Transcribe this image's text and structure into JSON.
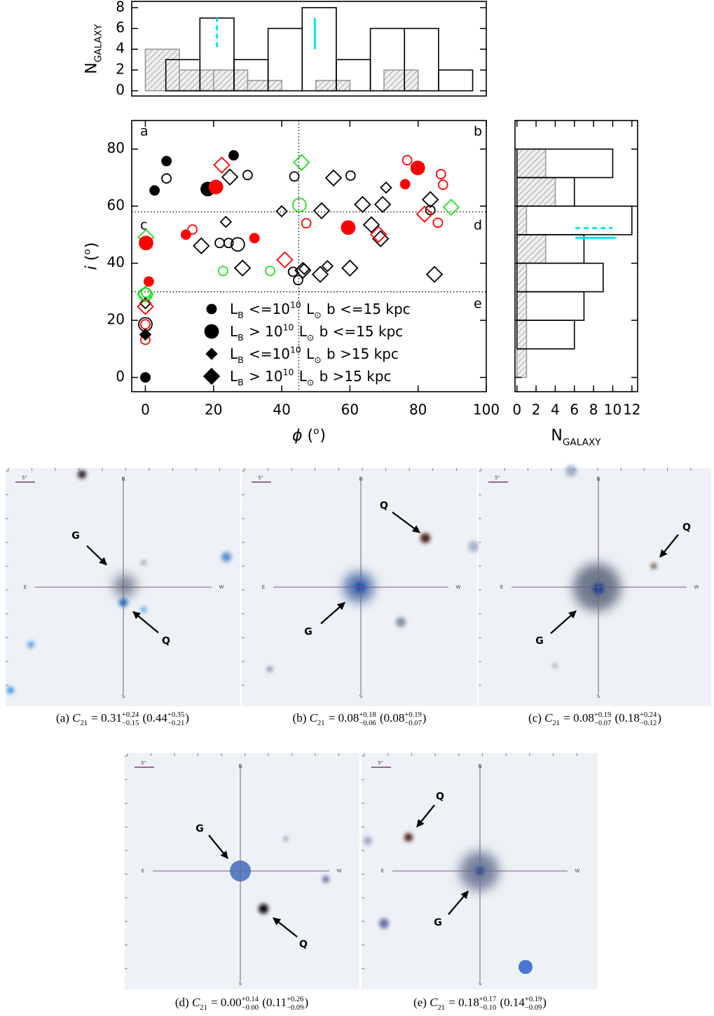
{
  "chart_data": [
    {
      "type": "histogram",
      "orientation": "vertical",
      "y_label": [
        {
          "text": "N"
        },
        {
          "sub": "GALAXY"
        }
      ],
      "xlim": [
        -4,
        100
      ],
      "ylim": [
        -0.5,
        8.6
      ],
      "yticks": [
        0,
        2,
        4,
        6,
        8
      ],
      "series": [
        {
          "bins": [
            0,
            10,
            20,
            30,
            40,
            50,
            60,
            70,
            80
          ],
          "values": [
            4,
            2,
            2,
            1,
            0,
            1,
            0,
            2
          ],
          "color": "#9a9a9a",
          "hatch": true
        },
        {
          "bins": [
            6,
            16,
            26,
            36,
            46,
            56,
            66,
            76,
            86,
            96
          ],
          "values": [
            3,
            7,
            3,
            6,
            8,
            3,
            6,
            6,
            2
          ],
          "color": "#000000",
          "hatch": false
        }
      ],
      "markers": [
        {
          "pos": 21,
          "span": [
            4.2,
            7
          ],
          "color": "#00e5ff",
          "dash": true
        },
        {
          "pos": 49.7,
          "span": [
            4,
            7
          ],
          "color": "#00e5ff",
          "dash": false
        }
      ]
    },
    {
      "type": "scatter",
      "x_label": [
        {
          "text": "ϕ",
          "style": "italic"
        },
        {
          "text": " ("
        },
        {
          "sup": "o"
        },
        {
          "text": ")"
        }
      ],
      "y_label": [
        {
          "text": "i",
          "style": "italic"
        },
        {
          "text": " ("
        },
        {
          "sup": "o"
        },
        {
          "text": ")"
        }
      ],
      "xlim": [
        -4,
        100
      ],
      "ylim": [
        -5,
        90
      ],
      "xticks": [
        0,
        20,
        40,
        60,
        80,
        100
      ],
      "yticks": [
        0,
        20,
        40,
        60,
        80
      ],
      "reference_lines": [
        {
          "axis": "x",
          "value": 45
        },
        {
          "axis": "y",
          "value": 58
        },
        {
          "axis": "y",
          "value": 30
        }
      ],
      "region_labels": [
        "a",
        "b",
        "c",
        "d",
        "e"
      ],
      "series": [
        {
          "marker": "circle",
          "size": "small",
          "filled": false,
          "color": "#000000",
          "x": [
            6.2,
            30,
            43.7,
            60.2,
            21.8,
            24.4,
            43.3,
            44.8,
            83.6
          ],
          "y": [
            69.7,
            70.9,
            70.4,
            70.7,
            47.1,
            47.1,
            37,
            34.1,
            58.6
          ]
        },
        {
          "marker": "circle",
          "size": "large",
          "filled": false,
          "color": "#000000",
          "x": [
            27.1,
            0
          ],
          "y": [
            46.6,
            18.6
          ]
        },
        {
          "marker": "circle",
          "size": "small",
          "filled": false,
          "color": "#ff0000",
          "x": [
            13.8,
            47.2,
            76.8,
            86.7,
            87.3,
            85.8,
            0,
            0,
            0
          ],
          "y": [
            51.8,
            54,
            76.1,
            71.2,
            67.5,
            54.2,
            18.6,
            13.2,
            0
          ]
        },
        {
          "marker": "circle",
          "size": "small",
          "filled": false,
          "color": "#22dd22",
          "x": [
            22.8,
            36.6,
            0.2
          ],
          "y": [
            37.3,
            37.3,
            29.7
          ]
        },
        {
          "marker": "circle",
          "size": "large",
          "filled": false,
          "color": "#22dd22",
          "x": [
            45.2,
            0
          ],
          "y": [
            60.4,
            29
          ]
        },
        {
          "marker": "diamond",
          "size": "small",
          "filled": false,
          "color": "#000000",
          "x": [
            23.6,
            40,
            46.6,
            53.4,
            70.6,
            0
          ],
          "y": [
            54.5,
            58.2,
            38,
            39,
            66.5,
            26
          ]
        },
        {
          "marker": "diamond",
          "size": "large",
          "filled": false,
          "color": "#000000",
          "x": [
            24.8,
            16.4,
            28.5,
            51.7,
            55.2,
            51.3,
            60,
            63.7,
            66.3,
            69.6,
            69,
            83.6,
            84.8,
            46.2
          ],
          "y": [
            70.2,
            46.1,
            38.3,
            58.4,
            69.9,
            36.1,
            38.3,
            60.6,
            53.5,
            60.6,
            48.6,
            62.3,
            36.1,
            37.5
          ]
        },
        {
          "marker": "diamond",
          "size": "large",
          "filled": false,
          "color": "#ff0000",
          "x": [
            22.4,
            40.9,
            81.9,
            68.4,
            0
          ],
          "y": [
            74.4,
            41.2,
            57.2,
            50.1,
            24.8
          ]
        },
        {
          "marker": "diamond",
          "size": "large",
          "filled": false,
          "color": "#22dd22",
          "x": [
            45.8,
            89.7,
            0.2,
            0
          ],
          "y": [
            75.3,
            59.6,
            49.1,
            29.2
          ]
        },
        {
          "marker": "circle",
          "size": "small",
          "filled": true,
          "color": "#000000",
          "x": [
            6.2,
            2.7,
            25.9,
            0
          ],
          "y": [
            75.8,
            65.5,
            77.8,
            0
          ]
        },
        {
          "marker": "circle",
          "size": "large",
          "filled": true,
          "color": "#000000",
          "x": [
            18.3
          ],
          "y": [
            66
          ]
        },
        {
          "marker": "circle",
          "size": "small",
          "filled": true,
          "color": "#ff0000",
          "x": [
            1,
            11.9,
            32,
            76.2
          ],
          "y": [
            33.6,
            50,
            48.8,
            67.7
          ]
        },
        {
          "marker": "circle",
          "size": "large",
          "filled": true,
          "color": "#ff0000",
          "x": [
            20.7,
            59.5,
            79.9,
            0.2
          ],
          "y": [
            66.7,
            52.5,
            73.4,
            47.1
          ]
        },
        {
          "marker": "diamond",
          "size": "small",
          "filled": true,
          "color": "#000000",
          "x": [
            0
          ],
          "y": [
            15
          ]
        }
      ],
      "legend": [
        {
          "marker": "circle",
          "size": "small",
          "filled": true,
          "color": "#000000",
          "label": [
            {
              "text": "L"
            },
            {
              "sub": "B"
            },
            {
              "text": " <=10"
            },
            {
              "sup": "10"
            },
            {
              "text": " L"
            },
            {
              "sub": "⊙"
            },
            {
              "text": " b <=15 kpc"
            }
          ]
        },
        {
          "marker": "circle",
          "size": "large",
          "filled": true,
          "color": "#000000",
          "label": [
            {
              "text": "L"
            },
            {
              "sub": "B"
            },
            {
              "text": " > 10"
            },
            {
              "sup": "10"
            },
            {
              "text": " L"
            },
            {
              "sub": "⊙"
            },
            {
              "text": " b <=15 kpc"
            }
          ]
        },
        {
          "marker": "diamond",
          "size": "small",
          "filled": true,
          "color": "#000000",
          "label": [
            {
              "text": "L"
            },
            {
              "sub": "B"
            },
            {
              "text": " <=10"
            },
            {
              "sup": "10"
            },
            {
              "text": " L"
            },
            {
              "sub": "⊙"
            },
            {
              "text": " b >15 kpc"
            }
          ]
        },
        {
          "marker": "diamond",
          "size": "large",
          "filled": true,
          "color": "#000000",
          "label": [
            {
              "text": "L"
            },
            {
              "sub": "B"
            },
            {
              "text": " > 10"
            },
            {
              "sup": "10"
            },
            {
              "text": " L"
            },
            {
              "sub": "⊙"
            },
            {
              "text": " b >15 kpc"
            }
          ]
        }
      ]
    },
    {
      "type": "histogram",
      "orientation": "horizontal",
      "x_label": [
        {
          "text": "N"
        },
        {
          "sub": "GALAXY"
        }
      ],
      "xlim": [
        -0.2,
        12.6
      ],
      "ylim": [
        -5,
        90
      ],
      "xticks": [
        0,
        2,
        4,
        6,
        8,
        10,
        12
      ],
      "yticks": [
        0,
        20,
        40,
        60,
        80
      ],
      "series": [
        {
          "bins": [
            0,
            10,
            20,
            30,
            40,
            50,
            60,
            70,
            80
          ],
          "values": [
            1,
            1,
            1,
            1,
            3,
            1,
            4,
            3
          ],
          "color": "#9a9a9a",
          "hatch": true
        },
        {
          "bins": [
            10,
            20,
            30,
            40,
            50,
            60,
            70,
            80
          ],
          "values": [
            6,
            7,
            9,
            7,
            12,
            6,
            10
          ],
          "color": "#000000",
          "hatch": false
        }
      ],
      "markers": [
        {
          "pos": 52.3,
          "span": [
            6.1,
            10
          ],
          "color": "#00e5ff",
          "dash": true
        },
        {
          "pos": 48.9,
          "span": [
            6.1,
            10.3
          ],
          "color": "#00e5ff",
          "dash": false
        }
      ]
    }
  ],
  "figure_panels": [
    {
      "north": "N",
      "south": "S",
      "east": "E",
      "west": "W",
      "scale": "5\"",
      "galaxy": "G",
      "qso": "Q",
      "caption": [
        {
          "text": "(a) "
        },
        {
          "text": "C",
          "style": "italic"
        },
        {
          "sub": "21"
        },
        {
          "text": " = 0.31"
        },
        {
          "sup": "+0.24",
          "sub": "−0.15"
        },
        {
          "text": " (0.44"
        },
        {
          "sup": "+0.35",
          "sub": "−0.21"
        },
        {
          "text": ")"
        }
      ]
    },
    {
      "north": "N",
      "south": "S",
      "east": "E",
      "west": "W",
      "scale": "5\"",
      "galaxy": "G",
      "qso": "Q",
      "caption": [
        {
          "text": "(b) "
        },
        {
          "text": "C",
          "style": "italic"
        },
        {
          "sub": "21"
        },
        {
          "text": " = 0.08"
        },
        {
          "sup": "+0.18",
          "sub": "−0.06"
        },
        {
          "text": " (0.08"
        },
        {
          "sup": "+0.19",
          "sub": "−0.07"
        },
        {
          "text": ")"
        }
      ]
    },
    {
      "north": "N",
      "south": "S",
      "east": "E",
      "west": "W",
      "scale": "5\"",
      "galaxy": "G",
      "qso": "Q",
      "caption": [
        {
          "text": "(c) "
        },
        {
          "text": "C",
          "style": "italic"
        },
        {
          "sub": "21"
        },
        {
          "text": " = 0.08"
        },
        {
          "sup": "+0.19",
          "sub": "−0.07"
        },
        {
          "text": " (0.18"
        },
        {
          "sup": "+0.24",
          "sub": "−0.12"
        },
        {
          "text": ")"
        }
      ]
    },
    {
      "north": "N",
      "south": "S",
      "east": "E",
      "west": "W",
      "scale": "5\"",
      "galaxy": "G",
      "qso": "Q",
      "caption": [
        {
          "text": "(d) "
        },
        {
          "text": "C",
          "style": "italic"
        },
        {
          "sub": "21"
        },
        {
          "text": " = 0.00"
        },
        {
          "sup": "+0.14",
          "sub": "−0.00"
        },
        {
          "text": " (0.11"
        },
        {
          "sup": "+0.26",
          "sub": "−0.09"
        },
        {
          "text": ")"
        }
      ]
    },
    {
      "north": "N",
      "south": "S",
      "east": "E",
      "west": "W",
      "scale": "5\"",
      "galaxy": "G",
      "qso": "Q",
      "caption": [
        {
          "text": "(e) "
        },
        {
          "text": "C",
          "style": "italic"
        },
        {
          "sub": "21"
        },
        {
          "text": " = 0.18"
        },
        {
          "sup": "+0.17",
          "sub": "−0.10"
        },
        {
          "text": " (0.14"
        },
        {
          "sup": "+0.19",
          "sub": "−0.09"
        },
        {
          "text": ")"
        }
      ]
    }
  ]
}
